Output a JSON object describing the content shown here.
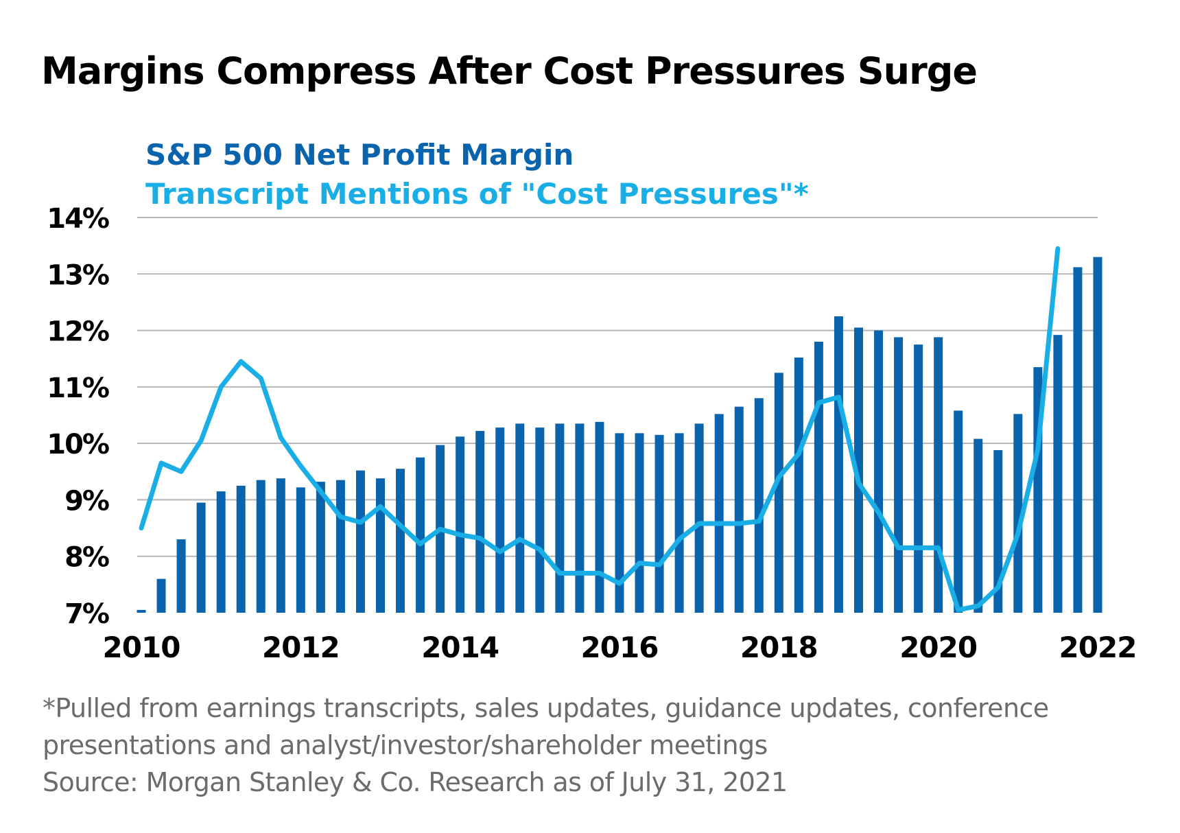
{
  "title": "Margins Compress After Cost Pressures Surge",
  "footnotes": {
    "line1": "*Pulled from earnings transcripts, sales updates, guidance updates, conference",
    "line2": "presentations and analyst/investor/shareholder meetings",
    "source": "Source: Morgan Stanley & Co. Research as of July 31, 2021"
  },
  "colors": {
    "bar": "#0a64ad",
    "line": "#1aaee6",
    "grid": "#b5b5b5",
    "text": "#000000",
    "footnote": "#6b6b6b"
  },
  "chart_data": {
    "type": "bar",
    "legend": [
      {
        "name": "S&P 500 Net Profit Margin",
        "color": "#0a64ad"
      },
      {
        "name": "Transcript Mentions of \"Cost Pressures\"*",
        "color": "#1aaee6"
      }
    ],
    "xlim": [
      2010,
      2022
    ],
    "ylim": [
      7,
      14
    ],
    "yticks": [
      7,
      8,
      9,
      10,
      11,
      12,
      13,
      14
    ],
    "ytick_labels": [
      "7%",
      "8%",
      "9%",
      "10%",
      "11%",
      "12%",
      "13%",
      "14%"
    ],
    "xticks": [
      2010,
      2012,
      2014,
      2016,
      2018,
      2020,
      2022
    ],
    "xtick_labels": [
      "2010",
      "2012",
      "2014",
      "2016",
      "2018",
      "2020",
      "2022"
    ],
    "grid": true,
    "series": [
      {
        "name": "S&P 500 Net Profit Margin",
        "type": "bar",
        "x": [
          2010.0,
          2010.25,
          2010.5,
          2010.75,
          2011.0,
          2011.25,
          2011.5,
          2011.75,
          2012.0,
          2012.25,
          2012.5,
          2012.75,
          2013.0,
          2013.25,
          2013.5,
          2013.75,
          2014.0,
          2014.25,
          2014.5,
          2014.75,
          2015.0,
          2015.25,
          2015.5,
          2015.75,
          2016.0,
          2016.25,
          2016.5,
          2016.75,
          2017.0,
          2017.25,
          2017.5,
          2017.75,
          2018.0,
          2018.25,
          2018.5,
          2018.75,
          2019.0,
          2019.25,
          2019.5,
          2019.75,
          2020.0,
          2020.25,
          2020.5,
          2020.75,
          2021.0,
          2021.25,
          2021.5,
          2021.75,
          2022.0
        ],
        "values": [
          7.05,
          7.6,
          8.3,
          8.95,
          9.15,
          9.25,
          9.35,
          9.38,
          9.22,
          9.32,
          9.35,
          9.52,
          9.38,
          9.55,
          9.75,
          9.97,
          10.12,
          10.22,
          10.28,
          10.35,
          10.28,
          10.35,
          10.35,
          10.38,
          10.18,
          10.18,
          10.15,
          10.18,
          10.35,
          10.52,
          10.65,
          10.8,
          11.25,
          11.52,
          11.8,
          12.25,
          12.05,
          12.0,
          11.88,
          11.75,
          11.88,
          10.58,
          10.08,
          9.88,
          10.52,
          11.35,
          11.92,
          13.12,
          13.3
        ]
      },
      {
        "name": "Transcript Mentions of \"Cost Pressures\"*",
        "type": "line",
        "x": [
          2010.0,
          2010.25,
          2010.5,
          2010.75,
          2011.0,
          2011.25,
          2011.5,
          2011.75,
          2012.0,
          2012.25,
          2012.5,
          2012.75,
          2013.0,
          2013.25,
          2013.5,
          2013.75,
          2014.0,
          2014.25,
          2014.5,
          2014.75,
          2015.0,
          2015.25,
          2015.5,
          2015.75,
          2016.0,
          2016.25,
          2016.5,
          2016.75,
          2017.0,
          2017.25,
          2017.5,
          2017.75,
          2018.0,
          2018.25,
          2018.5,
          2018.75,
          2019.0,
          2019.25,
          2019.5,
          2019.75,
          2020.0,
          2020.25,
          2020.5,
          2020.75,
          2021.0,
          2021.25,
          2021.5
        ],
        "values": [
          8.5,
          9.65,
          9.5,
          10.05,
          11.0,
          11.45,
          11.15,
          10.1,
          9.6,
          9.15,
          8.7,
          8.6,
          8.88,
          8.55,
          8.22,
          8.48,
          8.38,
          8.32,
          8.08,
          8.3,
          8.12,
          7.7,
          7.7,
          7.7,
          7.52,
          7.88,
          7.85,
          8.3,
          8.58,
          8.58,
          8.58,
          8.62,
          9.4,
          9.82,
          10.72,
          10.82,
          9.3,
          8.78,
          8.15,
          8.15,
          8.15,
          7.05,
          7.12,
          7.45,
          8.4,
          9.9,
          13.45
        ]
      }
    ]
  }
}
